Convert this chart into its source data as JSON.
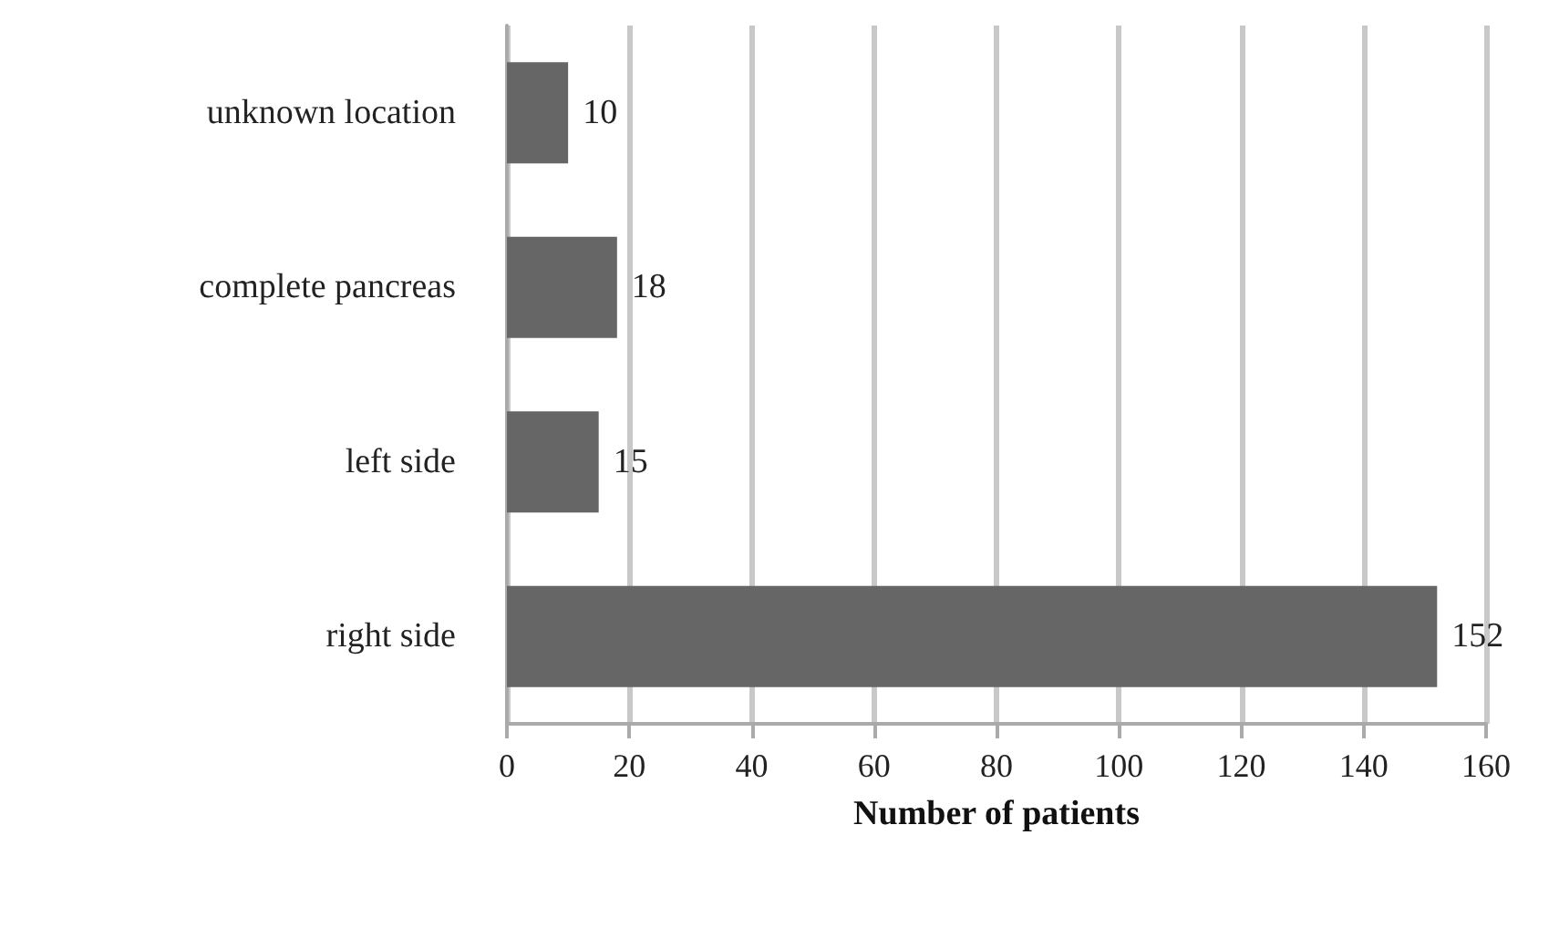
{
  "chart_data": {
    "type": "bar",
    "orientation": "horizontal",
    "xlabel": "Number of patients",
    "categories": [
      "unknown location",
      "complete pancreas",
      "left side",
      "right side"
    ],
    "values": [
      10,
      18,
      15,
      152
    ],
    "color": "#666666",
    "xlim": [
      0,
      160
    ],
    "xticks": [
      0,
      20,
      40,
      60,
      80,
      100,
      120,
      140,
      160
    ],
    "grid": "x",
    "data_labels": true
  }
}
